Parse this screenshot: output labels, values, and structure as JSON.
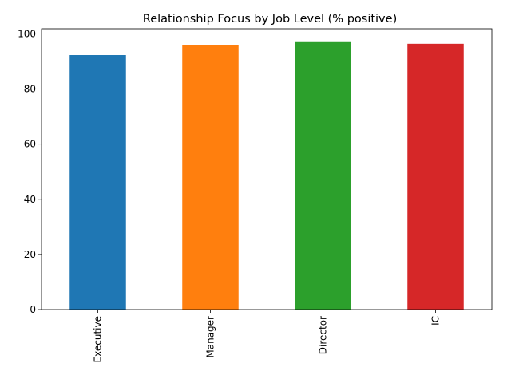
{
  "chart_data": {
    "type": "bar",
    "title": "Relationship Focus by Job Level (% positive)",
    "xlabel": "",
    "ylabel": "",
    "categories": [
      "Executive",
      "Manager",
      "Director",
      "IC"
    ],
    "values": [
      92.3,
      95.8,
      97.0,
      96.4
    ],
    "colors": [
      "#1f77b4",
      "#ff7f0e",
      "#2ca02c",
      "#d62728"
    ],
    "ylim": [
      0,
      101.85
    ],
    "yticks": [
      {
        "value": 0,
        "label": "0"
      },
      {
        "value": 20,
        "label": "20"
      },
      {
        "value": 40,
        "label": "40"
      },
      {
        "value": 60,
        "label": "60"
      },
      {
        "value": 80,
        "label": "80"
      },
      {
        "value": 100,
        "label": "100"
      }
    ],
    "grid": false,
    "legend": "none",
    "xtick_rotation": "vertical"
  }
}
